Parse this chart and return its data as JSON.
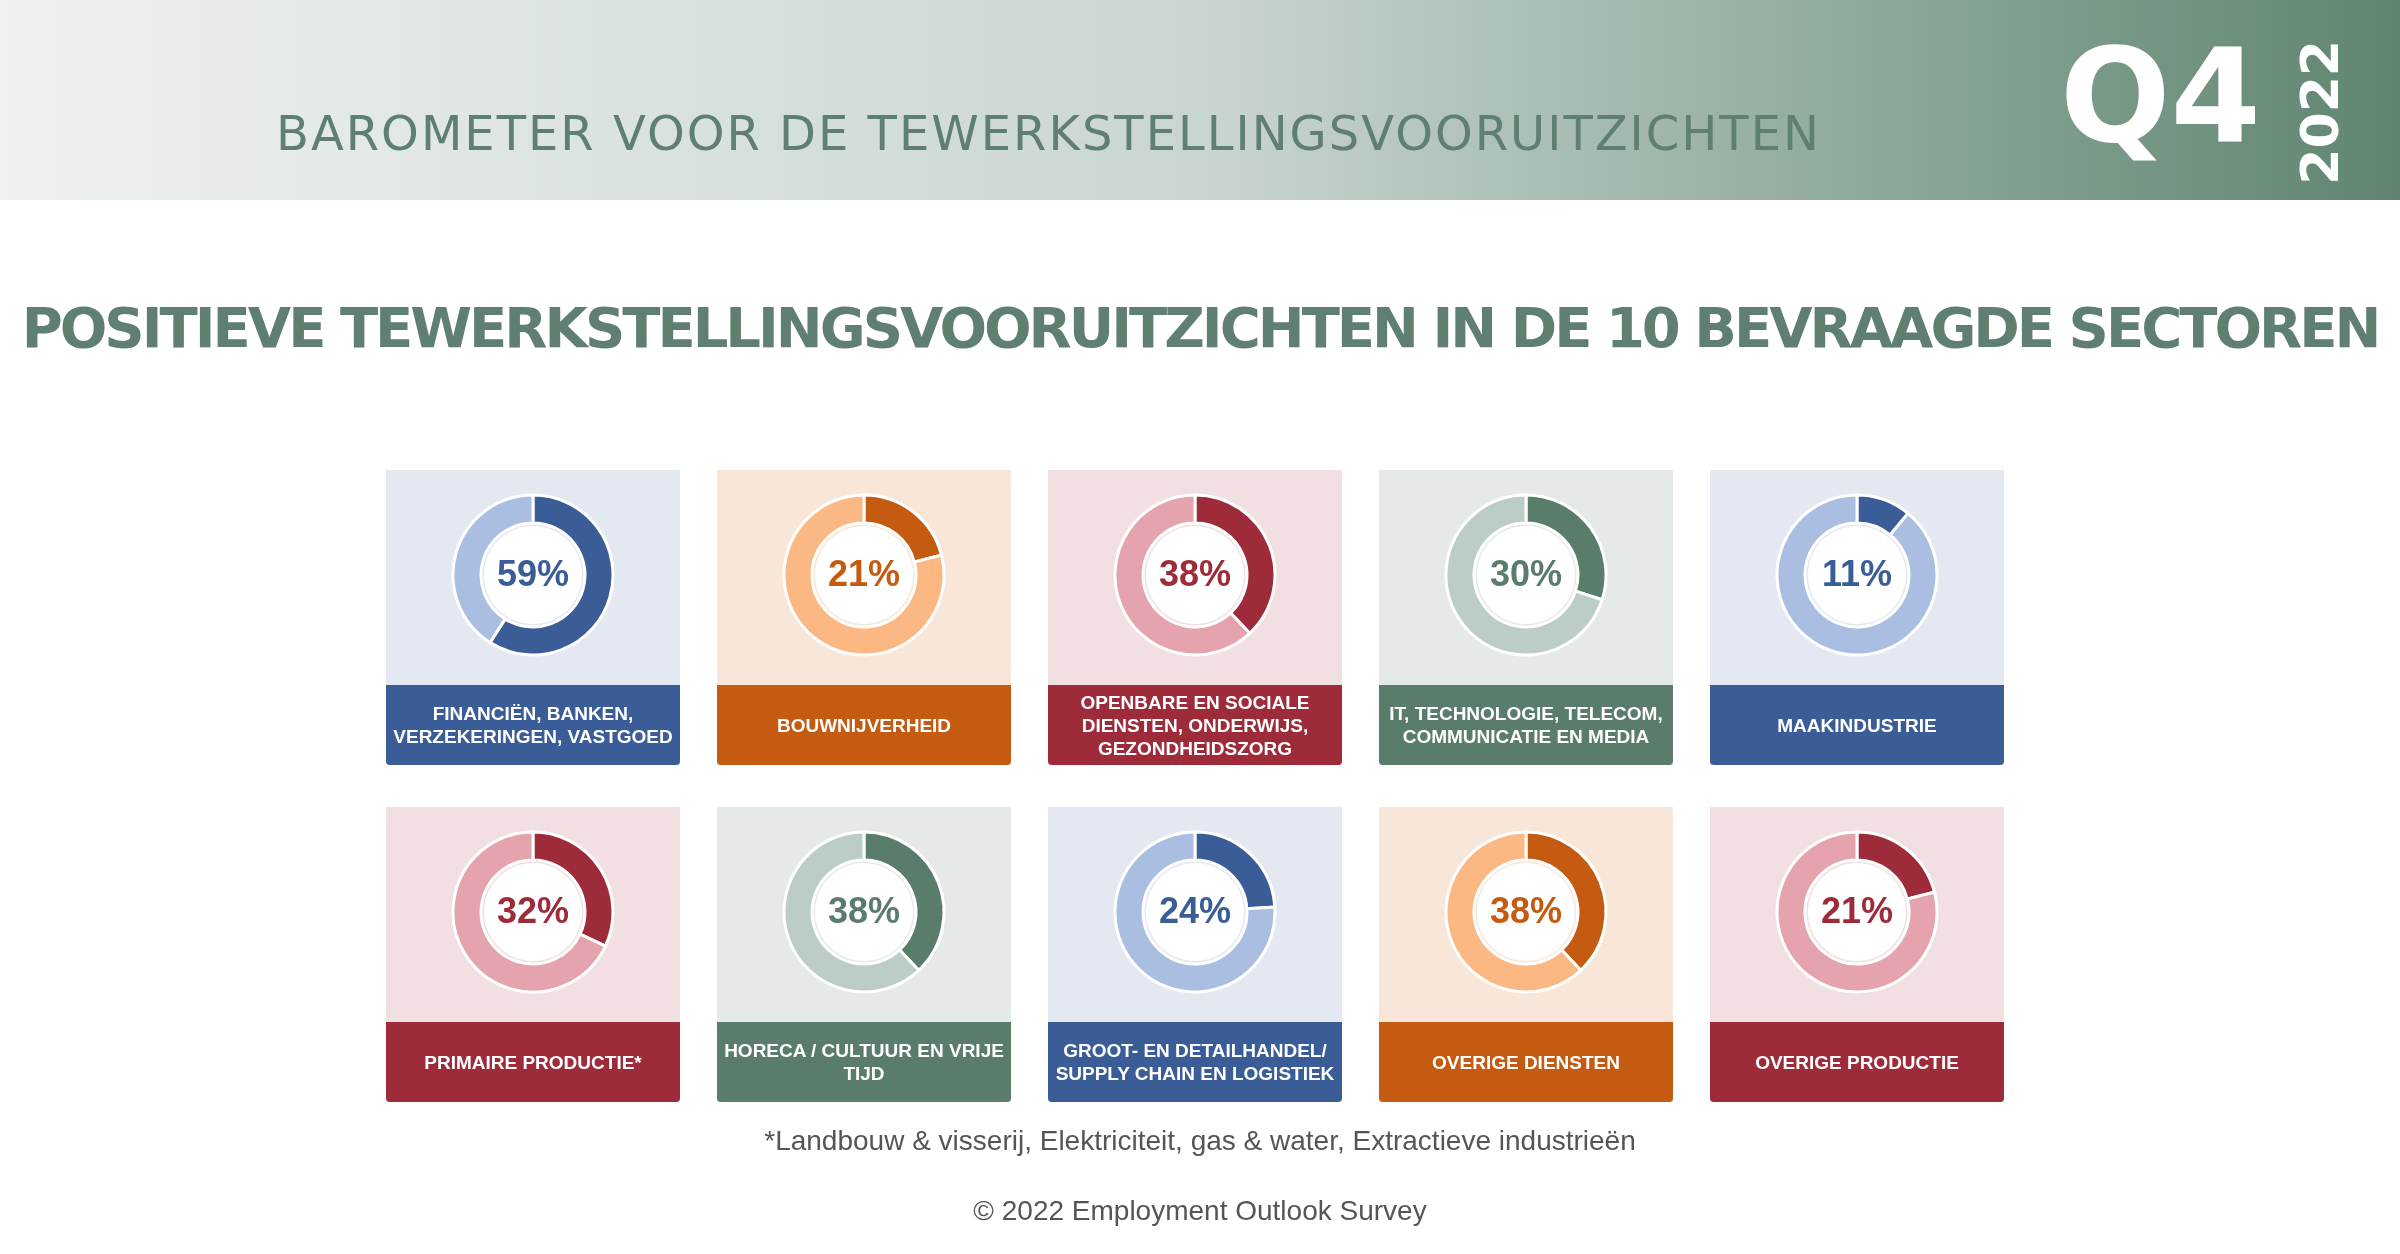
{
  "chart_data": [
    {
      "type": "other",
      "title": "POSITIEVE TEWERKSTELLINGSVOORUITZICHTEN IN DE 10 BEVRAAGDE SECTOREN",
      "subtitle": "BAROMETER VOOR DE TEWERKSTELLINGSVOORUITZICHTEN",
      "annotations": [
        "Q4",
        "2022",
        "*Landbouw & visserij, Elektriciteit, gas & water, Extractieve industrieën",
        "© 2022 Employment Outlook Survey"
      ]
    },
    {
      "type": "donut",
      "title": "FINANCIËN, BANKEN, VERZEKERINGEN, VASTGOED",
      "categories": [
        null,
        null
      ],
      "values": [
        59,
        41
      ],
      "colors": [
        "#3a5d97",
        "#a9bee0"
      ],
      "value_labels": [
        "59%",
        null
      ]
    },
    {
      "type": "donut",
      "title": "BOUWNIJVERHEID",
      "categories": [
        null,
        null
      ],
      "values": [
        21,
        79
      ],
      "colors": [
        "#c55a11",
        "#fbb882"
      ],
      "value_labels": [
        "21%",
        null
      ]
    },
    {
      "type": "donut",
      "title": "OPENBARE EN SOCIALE DIENSTEN, ONDERWIJS, GEZONDHEIDSZORG",
      "categories": [
        null,
        null
      ],
      "values": [
        38,
        62
      ],
      "colors": [
        "#9e2b3a",
        "#e4a3ad"
      ],
      "value_labels": [
        "38%",
        null
      ]
    },
    {
      "type": "donut",
      "title": "IT, TECHNOLOGIE, TELECOM, COMMUNICATIE EN MEDIA",
      "categories": [
        null,
        null
      ],
      "values": [
        30,
        70
      ],
      "colors": [
        "#5a7d6b",
        "#bccdc5"
      ],
      "value_labels": [
        "30%",
        null
      ]
    },
    {
      "type": "donut",
      "title": "MAAKINDUSTRIE",
      "categories": [
        null,
        null
      ],
      "values": [
        11,
        89
      ],
      "colors": [
        "#3a5d97",
        "#a9bee0"
      ],
      "value_labels": [
        "11%",
        null
      ]
    },
    {
      "type": "donut",
      "title": "PRIMAIRE PRODUCTIE*",
      "categories": [
        null,
        null
      ],
      "values": [
        32,
        68
      ],
      "colors": [
        "#9e2b3a",
        "#e4a3ad"
      ],
      "value_labels": [
        "32%",
        null
      ]
    },
    {
      "type": "donut",
      "title": "HORECA / CULTUUR EN VRIJE TIJD",
      "categories": [
        null,
        null
      ],
      "values": [
        38,
        62
      ],
      "colors": [
        "#5a7d6b",
        "#bccdc5"
      ],
      "value_labels": [
        "38%",
        null
      ]
    },
    {
      "type": "donut",
      "title": "GROOT- EN DETAILHANDEL/ SUPPLY CHAIN EN LOGISTIEK",
      "categories": [
        null,
        null
      ],
      "values": [
        24,
        76
      ],
      "colors": [
        "#3a5d97",
        "#a9bee0"
      ],
      "value_labels": [
        "24%",
        null
      ]
    },
    {
      "type": "donut",
      "title": "OVERIGE DIENSTEN",
      "categories": [
        null,
        null
      ],
      "values": [
        38,
        62
      ],
      "colors": [
        "#c55a11",
        "#fbb882"
      ],
      "value_labels": [
        "38%",
        null
      ]
    },
    {
      "type": "donut",
      "title": "OVERIGE PRODUCTIE",
      "categories": [
        null,
        null
      ],
      "values": [
        21,
        79
      ],
      "colors": [
        "#9e2b3a",
        "#e4a3ad"
      ],
      "value_labels": [
        "21%",
        null
      ]
    }
  ]
}
